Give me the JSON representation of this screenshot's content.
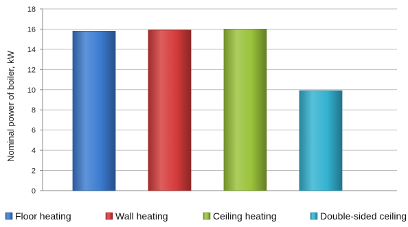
{
  "chart_data": {
    "type": "bar",
    "title": "",
    "xlabel": "",
    "ylabel": "Nominal power of boiler, kW",
    "ylim": [
      0,
      18
    ],
    "yticks": [
      0,
      2,
      4,
      6,
      8,
      10,
      12,
      14,
      16,
      18
    ],
    "grid": true,
    "legend_position": "bottom",
    "categories": [
      "Floor heating",
      "Wall heating",
      "Ceiling heating",
      "Double-sided ceiling heating"
    ],
    "values": [
      15.8,
      15.9,
      16.0,
      9.9
    ],
    "colors": [
      "#3c7bd1",
      "#d63b3b",
      "#9ac23a",
      "#33b2d1"
    ]
  }
}
